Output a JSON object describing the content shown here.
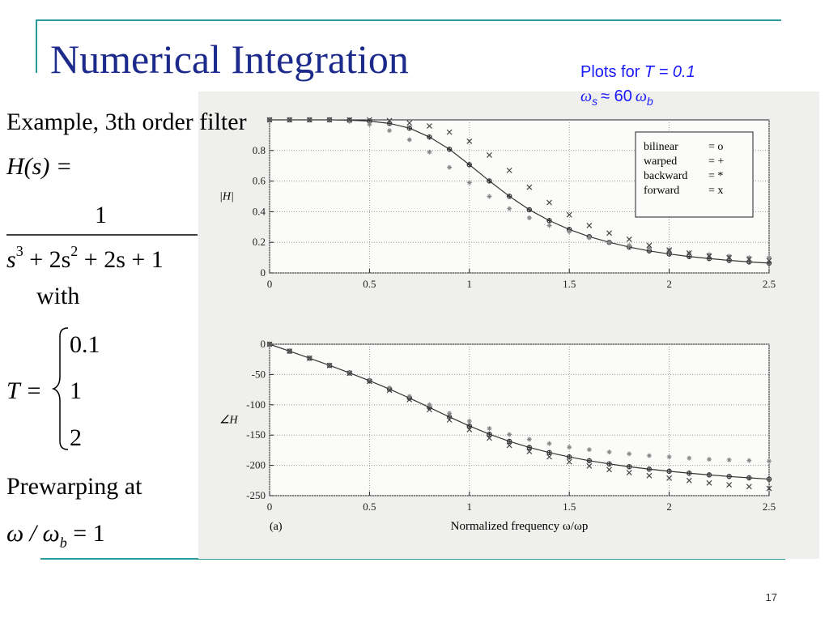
{
  "header": {
    "title": "Numerical Integration"
  },
  "note": {
    "text": "Plots for",
    "t_eq": "T = 0.1",
    "omega_s": "ω",
    "sub_s": "s",
    "approx": "≈ 60",
    "omega_b": "ω",
    "sub_b": "b"
  },
  "body": {
    "example": "Example,  3th order filter",
    "h": "H(s) =",
    "numerator": "1",
    "den": [
      "s",
      "3",
      " + 2s",
      "2",
      " + 2s + 1"
    ],
    "with": "with",
    "t_lhs": "T =",
    "t_cases": [
      "0.1",
      "1",
      "2"
    ],
    "prewarp": "Prewarping  at",
    "cond": [
      "ω / ω",
      "b",
      " = 1"
    ]
  },
  "footer": {
    "page": "17"
  },
  "chart_data": [
    {
      "type": "scatter",
      "y_label": "|H|",
      "legend": true,
      "x": [
        0,
        0.1,
        0.2,
        0.3,
        0.4,
        0.5,
        0.6,
        0.7,
        0.8,
        0.9,
        1,
        1.1,
        1.2,
        1.3,
        1.4,
        1.5,
        1.6,
        1.7,
        1.8,
        1.9,
        2,
        2.1,
        2.2,
        2.3,
        2.4,
        2.5
      ],
      "xlim": [
        0,
        2.5
      ],
      "xticks": [
        0,
        0.5,
        1,
        1.5,
        2,
        2.5
      ],
      "ylim": [
        0,
        1
      ],
      "yticks": [
        0,
        0.2,
        0.4,
        0.6,
        0.8
      ],
      "grid": true,
      "series": [
        {
          "name": "bilinear",
          "symbol": "= o",
          "marker": "circle",
          "color": "#333333",
          "line": true,
          "values": [
            1,
            1,
            1,
            1,
            0.998,
            0.992,
            0.977,
            0.946,
            0.888,
            0.808,
            0.707,
            0.601,
            0.501,
            0.413,
            0.342,
            0.284,
            0.237,
            0.2,
            0.169,
            0.144,
            0.124,
            0.107,
            0.094,
            0.082,
            0.072,
            0.064
          ]
        },
        {
          "name": "warped",
          "symbol": "= +",
          "marker": "plus",
          "color": "#333333",
          "values": [
            1,
            1,
            1,
            1,
            0.998,
            0.992,
            0.977,
            0.946,
            0.888,
            0.808,
            0.707,
            0.601,
            0.501,
            0.413,
            0.342,
            0.284,
            0.237,
            0.2,
            0.169,
            0.144,
            0.124,
            0.107,
            0.094,
            0.082,
            0.072,
            0.064
          ]
        },
        {
          "name": "backward",
          "symbol": "= *",
          "marker": "star",
          "color": "#888888",
          "values": [
            1,
            1,
            1,
            0.998,
            0.99,
            0.97,
            0.93,
            0.87,
            0.79,
            0.69,
            0.59,
            0.5,
            0.42,
            0.36,
            0.31,
            0.27,
            0.23,
            0.2,
            0.18,
            0.16,
            0.15,
            0.13,
            0.12,
            0.11,
            0.1,
            0.1
          ]
        },
        {
          "name": "forward",
          "symbol": "= x",
          "marker": "cross",
          "color": "#444444",
          "values": [
            1,
            1,
            1,
            1,
            1,
            1,
            0.995,
            0.98,
            0.96,
            0.92,
            0.86,
            0.77,
            0.67,
            0.56,
            0.46,
            0.38,
            0.31,
            0.26,
            0.22,
            0.18,
            0.15,
            0.13,
            0.11,
            0.1,
            0.09,
            0.08
          ]
        }
      ]
    },
    {
      "type": "scatter",
      "y_label": "∠H",
      "x_label": "Normalized frequency ω/ωp",
      "panel": "(a)",
      "legend": false,
      "x": [
        0,
        0.1,
        0.2,
        0.3,
        0.4,
        0.5,
        0.6,
        0.7,
        0.8,
        0.9,
        1,
        1.1,
        1.2,
        1.3,
        1.4,
        1.5,
        1.6,
        1.7,
        1.8,
        1.9,
        2,
        2.1,
        2.2,
        2.3,
        2.4,
        2.5
      ],
      "xlim": [
        0,
        2.5
      ],
      "xticks": [
        0,
        0.5,
        1,
        1.5,
        2,
        2.5
      ],
      "ylim": [
        -250,
        0
      ],
      "yticks": [
        0,
        -50,
        -100,
        -150,
        -200,
        -250
      ],
      "grid": true,
      "series": [
        {
          "name": "bilinear",
          "marker": "circle",
          "color": "#333333",
          "line": true,
          "values": [
            0,
            -11.5,
            -23.1,
            -34.9,
            -47.3,
            -60.3,
            -74.1,
            -88.9,
            -104.4,
            -120.1,
            -135,
            -148.5,
            -160.3,
            -170.4,
            -178.9,
            -186.1,
            -192.3,
            -197.6,
            -202.2,
            -206.2,
            -209.7,
            -212.9,
            -215.7,
            -218.3,
            -220.6,
            -222.7
          ]
        },
        {
          "name": "warped",
          "marker": "plus",
          "color": "#333333",
          "values": [
            0,
            -11.5,
            -23.1,
            -34.9,
            -47.3,
            -60.3,
            -74.1,
            -88.9,
            -104.4,
            -120.1,
            -135,
            -148.5,
            -160.3,
            -170.4,
            -178.9,
            -186.1,
            -192.3,
            -197.6,
            -202.2,
            -206.2,
            -209.7,
            -212.9,
            -215.7,
            -218.3,
            -220.6,
            -222.7
          ]
        },
        {
          "name": "backward",
          "marker": "star",
          "color": "#888888",
          "values": [
            0,
            -11.5,
            -23,
            -34.5,
            -46.5,
            -59,
            -72,
            -86,
            -100,
            -114,
            -127,
            -139,
            -149,
            -157,
            -164,
            -170,
            -174,
            -178,
            -181,
            -184,
            -186,
            -188,
            -190,
            -191,
            -192,
            -193
          ]
        },
        {
          "name": "forward",
          "marker": "cross",
          "color": "#444444",
          "values": [
            0,
            -11.5,
            -23.2,
            -35.2,
            -48,
            -61.5,
            -76,
            -91.5,
            -108,
            -125,
            -141,
            -155,
            -167,
            -177,
            -186,
            -194,
            -201,
            -207,
            -212,
            -217,
            -221,
            -225,
            -229,
            -232,
            -235,
            -238
          ]
        }
      ]
    }
  ]
}
